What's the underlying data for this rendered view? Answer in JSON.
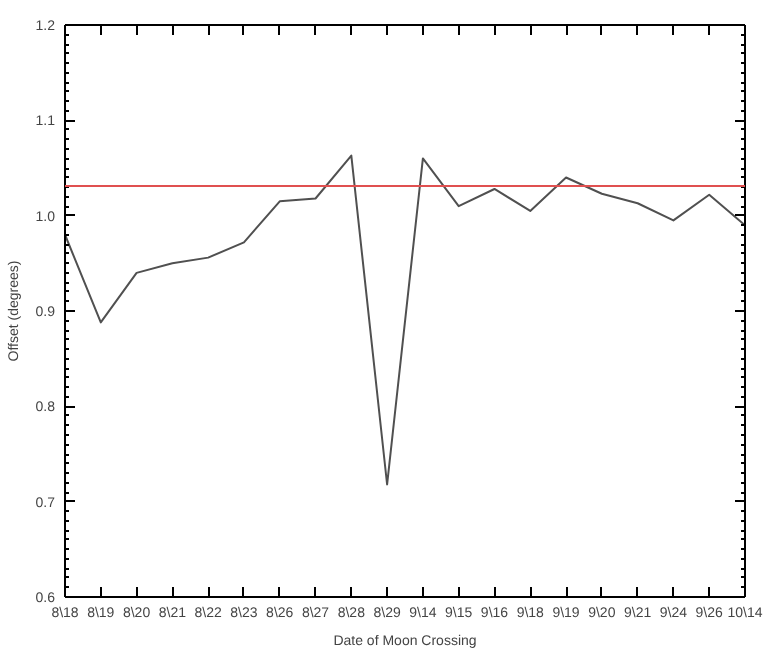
{
  "chart_data": {
    "type": "line",
    "xlabel": "Date of Moon Crossing",
    "ylabel": "Offset (degrees)",
    "categories": [
      "8\\18",
      "8\\19",
      "8\\20",
      "8\\21",
      "8\\22",
      "8\\23",
      "8\\26",
      "8\\27",
      "8\\28",
      "8\\29",
      "9\\14",
      "9\\15",
      "9\\16",
      "9\\18",
      "9\\19",
      "9\\20",
      "9\\21",
      "9\\24",
      "9\\26",
      "10\\14"
    ],
    "series": [
      {
        "color": "#505050",
        "values": [
          0.98,
          0.888,
          0.94,
          0.95,
          0.956,
          0.972,
          1.015,
          1.018,
          1.063,
          0.718,
          1.06,
          1.01,
          1.028,
          1.005,
          1.04,
          1.023,
          1.013,
          0.995,
          1.022,
          0.99
        ]
      }
    ],
    "ylim": [
      0.6,
      1.2
    ],
    "yticks": [
      {
        "value": 0.6,
        "label": "0.6"
      },
      {
        "value": 0.7,
        "label": "0.7"
      },
      {
        "value": 0.8,
        "label": "0.8"
      },
      {
        "value": 0.9,
        "label": "0.9"
      },
      {
        "value": 1.0,
        "label": "1.0"
      },
      {
        "value": 1.1,
        "label": "1.1"
      },
      {
        "value": 1.2,
        "label": "1.2"
      }
    ],
    "ref_lines": [
      {
        "axis": "y",
        "value": 1.031,
        "color": "#e05050"
      }
    ],
    "grid": false,
    "marker": "none",
    "line_style": "solid"
  }
}
